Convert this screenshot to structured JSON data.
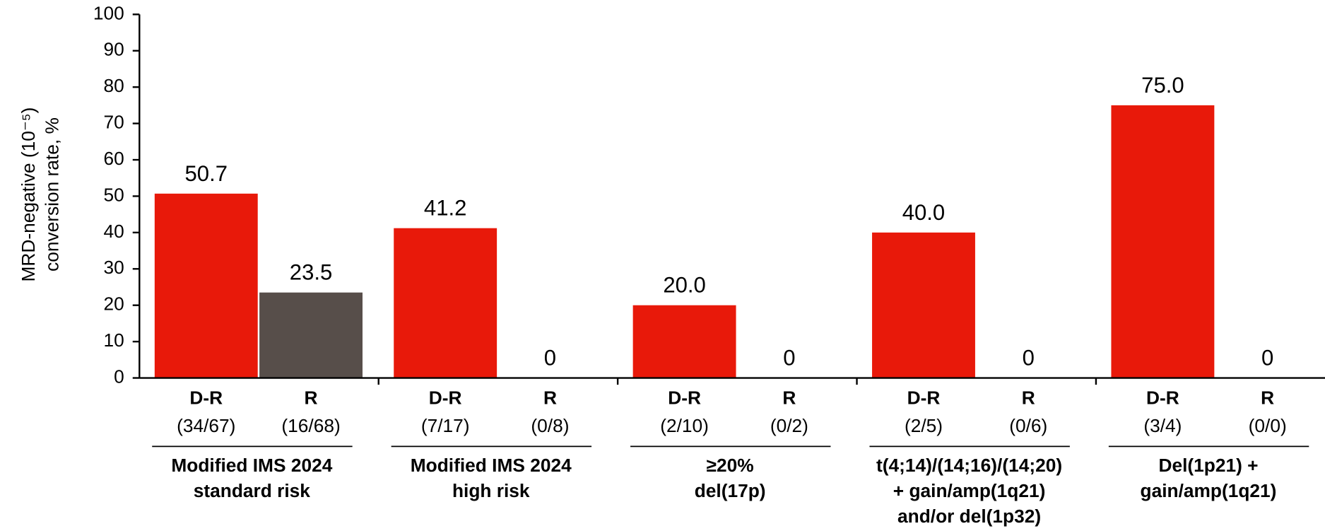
{
  "chart_data": {
    "type": "bar",
    "y_label": [
      "MRD-negative (10⁻⁵)",
      "conversion rate, %"
    ],
    "categories": [
      [
        "Modified IMS 2024",
        "standard risk"
      ],
      [
        "Modified IMS 2024",
        "high risk"
      ],
      [
        "≥20%",
        "del(17p)"
      ],
      [
        "t(4;14)/(14;16)/(14;20)",
        "+ gain/amp(1q21)",
        "and/or del(1p32)"
      ],
      [
        "Del(1p21) +",
        "gain/amp(1q21)"
      ]
    ],
    "series": [
      {
        "name": "D-R",
        "color": "#e8190a",
        "values": [
          50.7,
          41.2,
          20.0,
          40.0,
          75.0
        ],
        "value_labels": [
          "50.7",
          "41.2",
          "20.0",
          "40.0",
          "75.0"
        ],
        "counts": [
          "(34/67)",
          "(7/17)",
          "(2/10)",
          "(2/5)",
          "(3/4)"
        ]
      },
      {
        "name": "R",
        "color": "#574e4a",
        "values": [
          23.5,
          0,
          0,
          0,
          0
        ],
        "value_labels": [
          "23.5",
          "0",
          "0",
          "0",
          "0"
        ],
        "counts": [
          "(16/68)",
          "(0/8)",
          "(0/2)",
          "(0/6)",
          "(0/0)"
        ]
      }
    ],
    "ylim": [
      0,
      100
    ],
    "yticks": [
      0,
      10,
      20,
      30,
      40,
      50,
      60,
      70,
      80,
      90,
      100
    ]
  }
}
